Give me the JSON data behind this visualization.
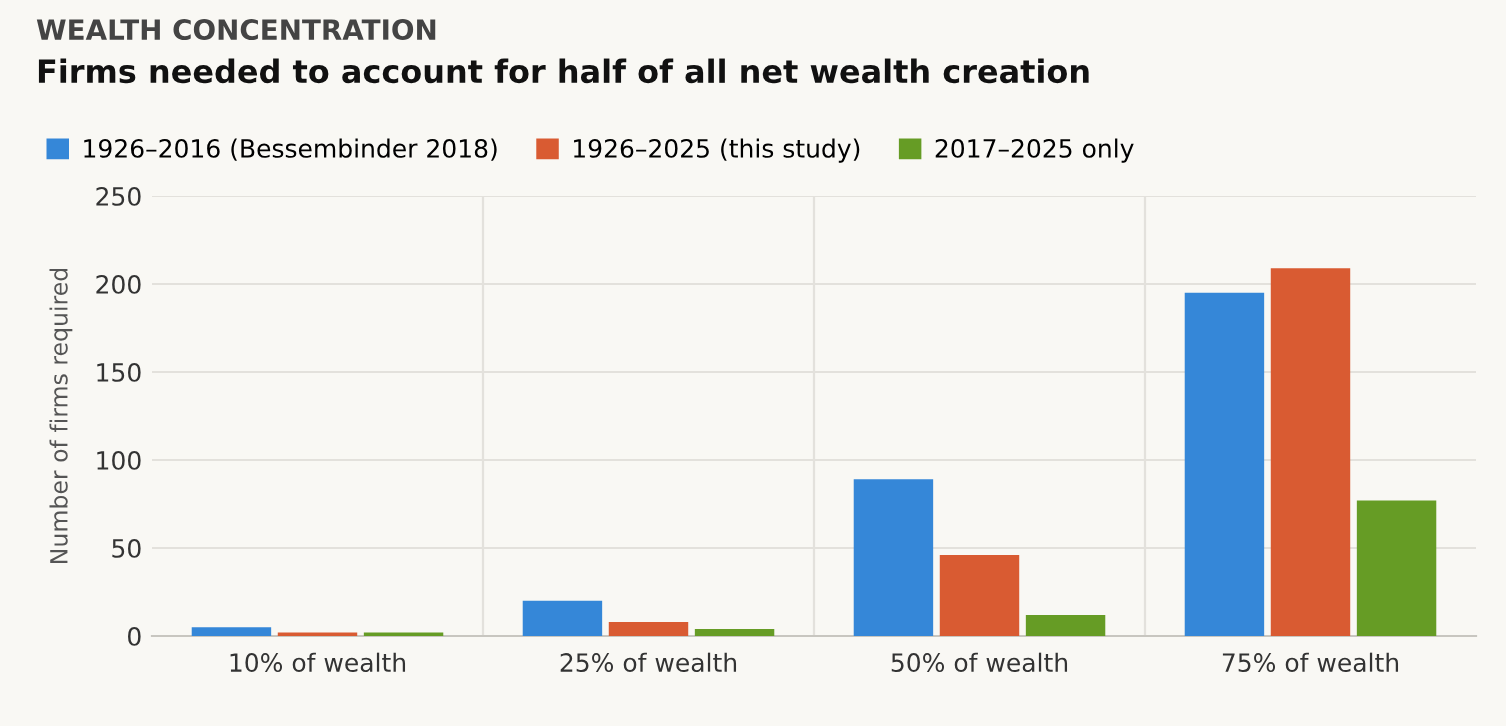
{
  "chart_data": {
    "type": "bar",
    "title": "WEALTH CONCENTRATION",
    "subtitle": "Firms needed to account for half of all net wealth creation",
    "ylabel": "Number of firms required",
    "categories": [
      "10% of wealth",
      "25% of wealth",
      "50% of wealth",
      "75% of wealth"
    ],
    "series": [
      {
        "name": "1926–2016 (Bessembinder 2018)",
        "color": "#3587d8",
        "values": [
          5,
          20,
          89,
          195
        ]
      },
      {
        "name": "1926–2025 (this study)",
        "color": "#d95b32",
        "values": [
          2,
          8,
          46,
          209
        ]
      },
      {
        "name": "2017–2025 only",
        "color": "#669c25",
        "values": [
          2,
          4,
          12,
          77
        ]
      }
    ],
    "ylim": [
      0,
      250
    ],
    "yticks": [
      0,
      50,
      100,
      150,
      200,
      250
    ],
    "grid": true,
    "legend": "top left"
  }
}
